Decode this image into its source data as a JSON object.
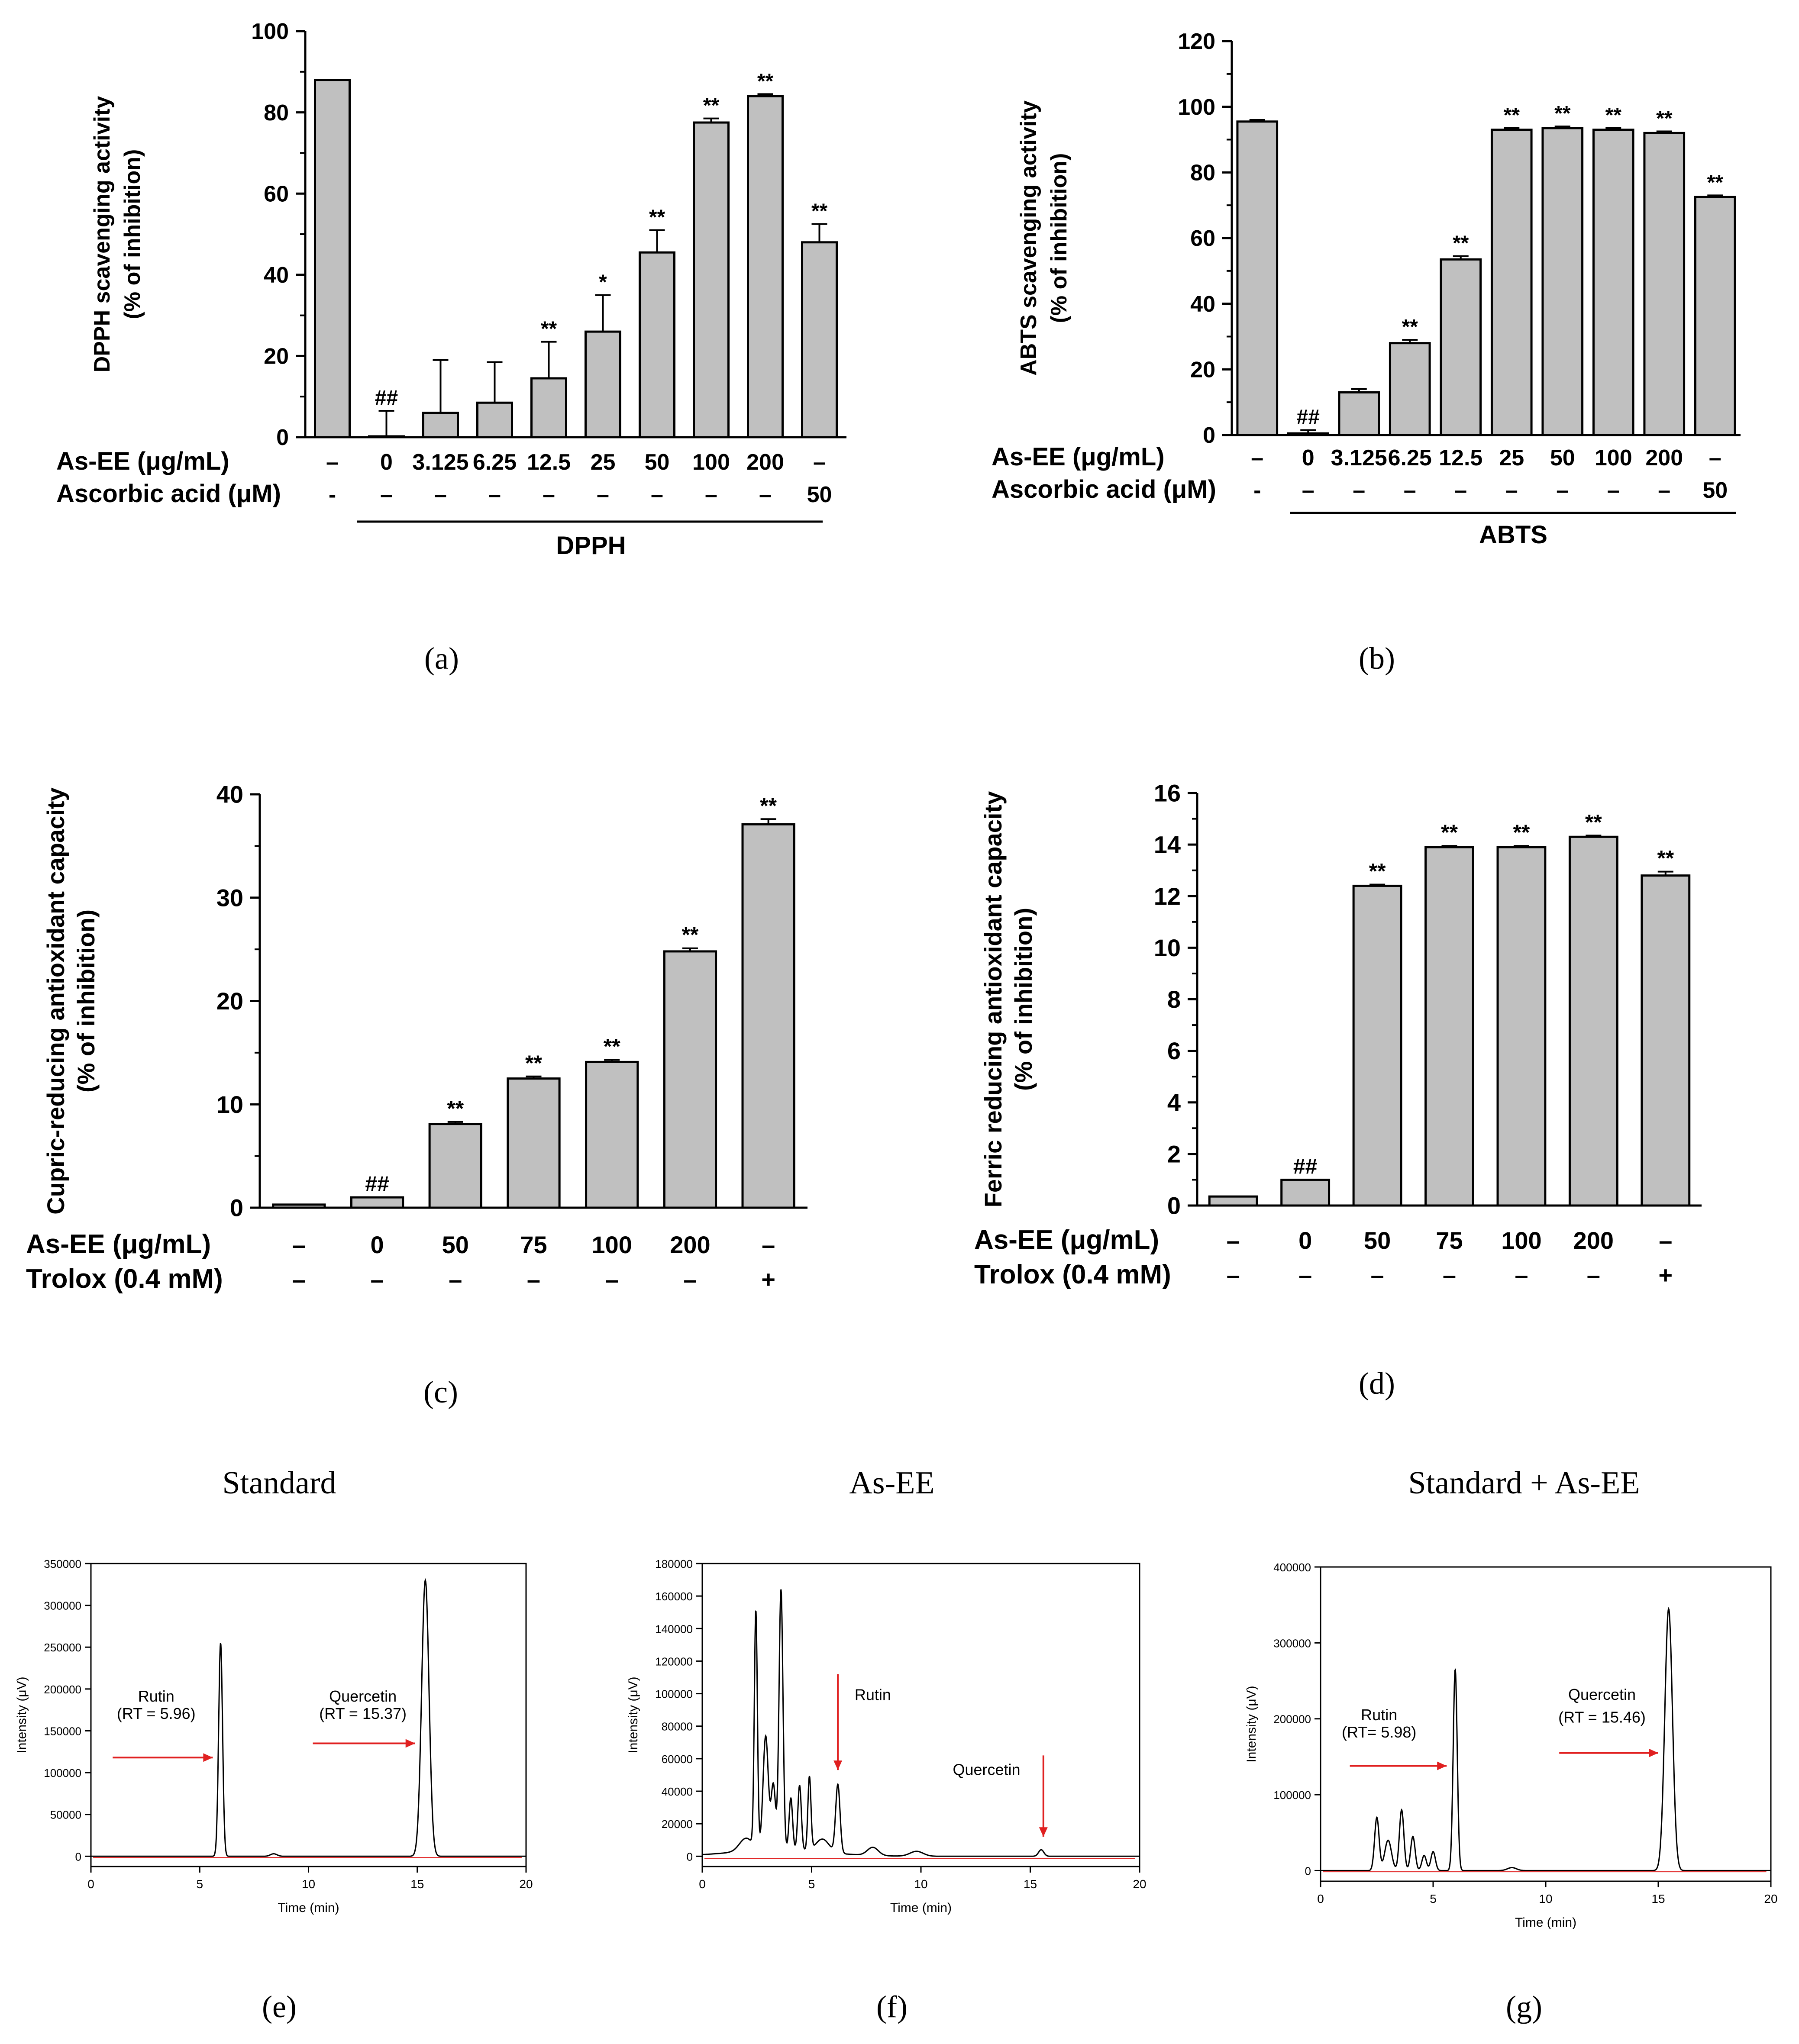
{
  "chart_data": [
    {
      "panel": "a",
      "type": "bar",
      "caption": "(a)",
      "ylabel": [
        "DPPH scavenging activity",
        "(% of inhibition)"
      ],
      "ylim": [
        0,
        100
      ],
      "yticks": [
        "0",
        "20",
        "40",
        "60",
        "80",
        "100"
      ],
      "values": [
        88,
        0,
        6,
        8.5,
        14.5,
        26,
        45.5,
        77.5,
        84,
        48
      ],
      "errors": [
        0,
        6.5,
        13,
        10,
        9,
        9,
        5.5,
        1,
        0.5,
        4.5
      ],
      "annotations": [
        "",
        "##",
        "",
        "",
        "**",
        "*",
        "**",
        "**",
        "**",
        "**"
      ],
      "rows": [
        {
          "label": "As-EE (μg/mL)",
          "values": [
            "–",
            "0",
            "3.125",
            "6.25",
            "12.5",
            "25",
            "50",
            "100",
            "200",
            "–"
          ]
        },
        {
          "label": "Ascorbic acid (μM)",
          "values": [
            "-",
            "–",
            "–",
            "–",
            "–",
            "–",
            "–",
            "–",
            "–",
            "50"
          ]
        }
      ],
      "group_label": "DPPH"
    },
    {
      "panel": "b",
      "type": "bar",
      "caption": "(b)",
      "ylabel": [
        "ABTS scavenging activity",
        "(% of inhibition)"
      ],
      "ylim": [
        0,
        120
      ],
      "yticks": [
        "0",
        "20",
        "40",
        "60",
        "80",
        "100",
        "120"
      ],
      "values": [
        95.5,
        0.5,
        13,
        28,
        53.5,
        93,
        93.5,
        93,
        92,
        72.5
      ],
      "errors": [
        0.5,
        1,
        1,
        1,
        1,
        0.5,
        0.5,
        0.5,
        0.5,
        0.5
      ],
      "annotations": [
        "",
        "##",
        "",
        "**",
        "**",
        "**",
        "**",
        "**",
        "**",
        "**"
      ],
      "rows": [
        {
          "label": "As-EE (μg/mL)",
          "values": [
            "–",
            "0",
            "3.125",
            "6.25",
            "12.5",
            "25",
            "50",
            "100",
            "200",
            "–"
          ]
        },
        {
          "label": "Ascorbic acid (μM)",
          "values": [
            "-",
            "–",
            "–",
            "–",
            "–",
            "–",
            "–",
            "–",
            "–",
            "50"
          ]
        }
      ],
      "group_label": "ABTS"
    },
    {
      "panel": "c",
      "type": "bar",
      "caption": "(c)",
      "ylabel": [
        "Cupric-reducing antioxidant capacity",
        "(% of inhibition)"
      ],
      "ylim": [
        0,
        40
      ],
      "yticks": [
        "0",
        "10",
        "20",
        "30",
        "40"
      ],
      "values": [
        0.3,
        1,
        8.1,
        12.5,
        14.1,
        24.8,
        37.1
      ],
      "errors": [
        0,
        0,
        0.2,
        0.2,
        0.2,
        0.3,
        0.5
      ],
      "annotations": [
        "",
        "##",
        "**",
        "**",
        "**",
        "**",
        "**"
      ],
      "rows": [
        {
          "label": "As-EE (μg/mL)",
          "values": [
            "–",
            "0",
            "50",
            "75",
            "100",
            "200",
            "–"
          ]
        },
        {
          "label": "Trolox (0.4 mM)",
          "values": [
            "–",
            "–",
            "–",
            "–",
            "–",
            "–",
            "+"
          ]
        }
      ]
    },
    {
      "panel": "d",
      "type": "bar",
      "caption": "(d)",
      "ylabel": [
        "Ferric reducing antioxidant capacity",
        "(% of inhibition)"
      ],
      "ylim": [
        0,
        16
      ],
      "yticks": [
        "0",
        "2",
        "4",
        "6",
        "8",
        "10",
        "12",
        "14",
        "16"
      ],
      "values": [
        0.35,
        1,
        12.4,
        13.9,
        13.9,
        14.3,
        12.8
      ],
      "errors": [
        0,
        0,
        0.05,
        0.05,
        0.05,
        0.05,
        0.15
      ],
      "annotations": [
        "",
        "##",
        "**",
        "**",
        "**",
        "**",
        "**"
      ],
      "rows": [
        {
          "label": "As-EE (μg/mL)",
          "values": [
            "–",
            "0",
            "50",
            "75",
            "100",
            "200",
            "–"
          ]
        },
        {
          "label": "Trolox (0.4 mM)",
          "values": [
            "–",
            "–",
            "–",
            "–",
            "–",
            "–",
            "+"
          ]
        }
      ]
    },
    {
      "panel": "e",
      "type": "line",
      "title": "Standard",
      "caption": "(e)",
      "xlabel": "Time (min)",
      "ylabel": "Intensity (μV)",
      "xlim": [
        0,
        20
      ],
      "xticks": [
        "0",
        "5",
        "10",
        "15",
        "20"
      ],
      "ylim": [
        0,
        350000
      ],
      "yticks": [
        "0",
        "50000",
        "100000",
        "150000",
        "200000",
        "250000",
        "300000",
        "350000"
      ],
      "peaks": [
        [
          5.96,
          255000,
          0.09
        ],
        [
          8.4,
          3000,
          0.15
        ],
        [
          15.37,
          330000,
          0.17
        ]
      ],
      "annotations": [
        {
          "text": [
            "Rutin",
            "(RT = 5.96)"
          ],
          "x": 3,
          "y": 185000,
          "arrow": [
            [
              1,
              118000
            ],
            [
              5.6,
              118000
            ]
          ]
        },
        {
          "text": [
            "Quercetin",
            "(RT = 15.37)"
          ],
          "x": 12.5,
          "y": 185000,
          "arrow": [
            [
              10.2,
              135000
            ],
            [
              14.9,
              135000
            ]
          ]
        }
      ]
    },
    {
      "panel": "f",
      "type": "line",
      "title": "As-EE",
      "caption": "(f)",
      "xlabel": "Time (min)",
      "ylabel": "Intensity (μV)",
      "xlim": [
        0,
        20
      ],
      "xticks": [
        "0",
        "5",
        "10",
        "15",
        "20"
      ],
      "ylim": [
        0,
        180000
      ],
      "yticks": [
        "0",
        "20000",
        "40000",
        "60000",
        "80000",
        "100000",
        "120000",
        "140000",
        "160000",
        "180000"
      ],
      "peaks": [
        [
          2.0,
          8000,
          0.3
        ],
        [
          2.45,
          145000,
          0.07
        ],
        [
          2.9,
          70000,
          0.12
        ],
        [
          3.25,
          40000,
          0.1
        ],
        [
          3.6,
          160000,
          0.09
        ],
        [
          4.05,
          32000,
          0.08
        ],
        [
          4.45,
          40000,
          0.08
        ],
        [
          4.9,
          45000,
          0.07
        ],
        [
          5.5,
          8000,
          0.3
        ],
        [
          6.2,
          42000,
          0.1
        ],
        [
          7.8,
          5000,
          0.25
        ],
        [
          9.8,
          3000,
          0.3
        ],
        [
          15.5,
          4000,
          0.12
        ]
      ],
      "annotations": [
        {
          "text": [
            "Rutin"
          ],
          "x": 7.8,
          "y": 96000,
          "arrow": [
            [
              6.2,
              112000
            ],
            [
              6.2,
              53000
            ]
          ]
        },
        {
          "text": [
            "Quercetin"
          ],
          "x": 13,
          "y": 50000,
          "arrow": [
            [
              15.6,
              62000
            ],
            [
              15.6,
              12000
            ]
          ]
        }
      ]
    },
    {
      "panel": "g",
      "type": "line",
      "title": "Standard + As-EE",
      "caption": "(g)",
      "xlabel": "Time (min)",
      "ylabel": "Intensity (μV)",
      "xlim": [
        0,
        20
      ],
      "xticks": [
        "0",
        "5",
        "10",
        "15",
        "20"
      ],
      "ylim": [
        0,
        400000
      ],
      "yticks": [
        "0",
        "100000",
        "200000",
        "300000",
        "400000"
      ],
      "peaks": [
        [
          2.5,
          70000,
          0.1
        ],
        [
          3.0,
          40000,
          0.15
        ],
        [
          3.6,
          80000,
          0.1
        ],
        [
          4.1,
          45000,
          0.1
        ],
        [
          4.6,
          20000,
          0.1
        ],
        [
          5.0,
          25000,
          0.1
        ],
        [
          5.98,
          265000,
          0.09
        ],
        [
          8.5,
          4000,
          0.2
        ],
        [
          15.46,
          345000,
          0.17
        ]
      ],
      "annotations": [
        {
          "text": [
            "Rutin",
            "(RT= 5.98)"
          ],
          "x": 2.6,
          "y": 198000,
          "arrow": [
            [
              1.3,
              138000
            ],
            [
              5.6,
              138000
            ]
          ]
        },
        {
          "text": [
            "Quercetin"
          ],
          "x": 12.5,
          "y": 225000,
          "arrow": [
            [
              10.6,
              155000
            ],
            [
              15.0,
              155000
            ]
          ]
        },
        {
          "text": [
            "(RT = 15.46)"
          ],
          "x": 12.5,
          "y": 195000
        }
      ]
    }
  ]
}
